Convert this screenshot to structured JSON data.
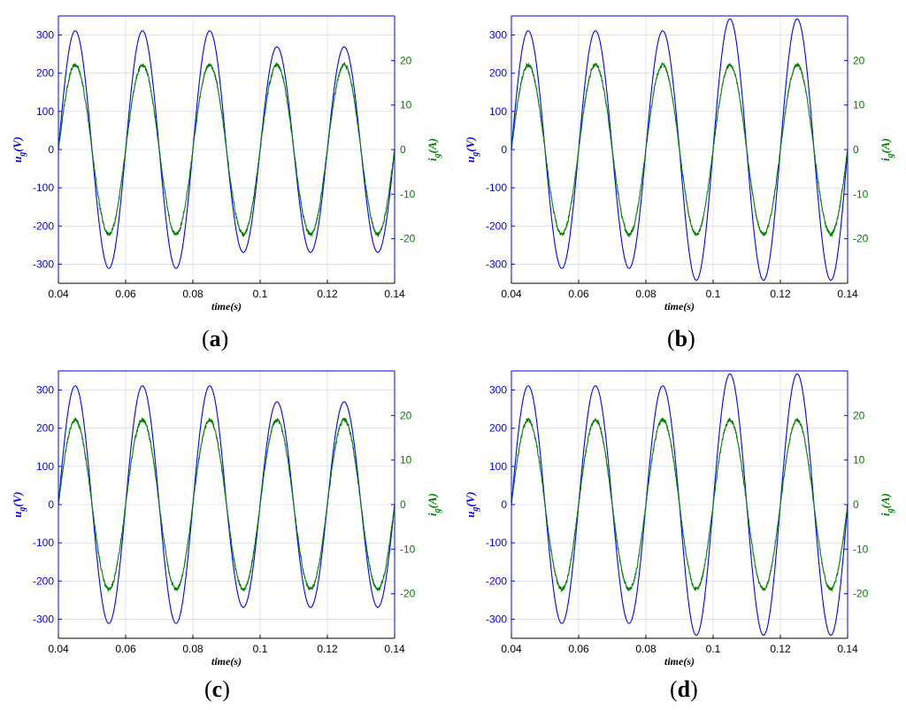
{
  "chart_data": [
    {
      "type": "line",
      "panel_label": "a",
      "xlabel": "time(s)",
      "ylabel_left": {
        "base": "u",
        "sub": "g",
        "unit": "(V)"
      },
      "ylabel_right": {
        "base": "i",
        "sub": "g",
        "unit": "(A)"
      },
      "xlim": [
        0.04,
        0.14
      ],
      "ylim_left": [
        -350,
        350
      ],
      "ylim_right": [
        -30,
        30
      ],
      "x_ticks": [
        "0.04",
        "0.06",
        "0.08",
        "0.1",
        "0.12",
        "0.14"
      ],
      "y_ticks_left": [
        "300",
        "200",
        "100",
        "0",
        "-100",
        "-200",
        "-300"
      ],
      "y_ticks_right": [
        "20",
        "10",
        "0",
        "-10",
        "-20"
      ],
      "grid": true,
      "frequency_hz": 50,
      "series": [
        {
          "axis": "left",
          "color": "#0000ff",
          "x": [
            0.04,
            0.09,
            0.09,
            0.14
          ],
          "amplitude": [
            311,
            311,
            269,
            269
          ]
        },
        {
          "axis": "right",
          "color": "#008000",
          "x": [
            0.04,
            0.09,
            0.09,
            0.14
          ],
          "amplitude": [
            19,
            19,
            19,
            19
          ]
        }
      ]
    },
    {
      "type": "line",
      "panel_label": "b",
      "xlabel": "time(s)",
      "ylabel_left": {
        "base": "u",
        "sub": "g",
        "unit": "(V)"
      },
      "ylabel_right": {
        "base": "i",
        "sub": "g",
        "unit": "(A)"
      },
      "xlim": [
        0.04,
        0.14
      ],
      "ylim_left": [
        -350,
        350
      ],
      "ylim_right": [
        -30,
        30
      ],
      "x_ticks": [
        "0.04",
        "0.06",
        "0.08",
        "0.1",
        "0.12",
        "0.14"
      ],
      "y_ticks_left": [
        "300",
        "200",
        "100",
        "0",
        "-100",
        "-200",
        "-300"
      ],
      "y_ticks_right": [
        "20",
        "10",
        "0",
        "-10",
        "-20"
      ],
      "grid": true,
      "frequency_hz": 50,
      "series": [
        {
          "axis": "left",
          "color": "#0000ff",
          "x": [
            0.04,
            0.09,
            0.09,
            0.14
          ],
          "amplitude": [
            311,
            311,
            342,
            342
          ]
        },
        {
          "axis": "right",
          "color": "#008000",
          "x": [
            0.04,
            0.09,
            0.09,
            0.14
          ],
          "amplitude": [
            19,
            19,
            19,
            19
          ]
        }
      ]
    },
    {
      "type": "line",
      "panel_label": "c",
      "xlabel": "time(s)",
      "ylabel_left": {
        "base": "u",
        "sub": "g",
        "unit": "(V)"
      },
      "ylabel_right": {
        "base": "i",
        "sub": "g",
        "unit": "(A)"
      },
      "xlim": [
        0.04,
        0.14
      ],
      "ylim_left": [
        -350,
        350
      ],
      "ylim_right": [
        -30,
        30
      ],
      "x_ticks": [
        "0.04",
        "0.06",
        "0.08",
        "0.1",
        "0.12",
        "0.14"
      ],
      "y_ticks_left": [
        "300",
        "200",
        "100",
        "0",
        "-100",
        "-200",
        "-300"
      ],
      "y_ticks_right": [
        "20",
        "10",
        "0",
        "-10",
        "-20"
      ],
      "grid": true,
      "frequency_hz": 50,
      "series": [
        {
          "axis": "left",
          "color": "#0000ff",
          "x": [
            0.04,
            0.09,
            0.09,
            0.14
          ],
          "amplitude": [
            311,
            311,
            269,
            269
          ]
        },
        {
          "axis": "right",
          "color": "#008000",
          "x": [
            0.04,
            0.09,
            0.09,
            0.14
          ],
          "amplitude": [
            19,
            19,
            19,
            19
          ]
        }
      ]
    },
    {
      "type": "line",
      "panel_label": "d",
      "xlabel": "time(s)",
      "ylabel_left": {
        "base": "u",
        "sub": "g",
        "unit": "(V)"
      },
      "ylabel_right": {
        "base": "i",
        "sub": "g",
        "unit": "(A)"
      },
      "xlim": [
        0.04,
        0.14
      ],
      "ylim_left": [
        -350,
        350
      ],
      "ylim_right": [
        -30,
        30
      ],
      "x_ticks": [
        "0.04",
        "0.06",
        "0.08",
        "0.1",
        "0.12",
        "0.14"
      ],
      "y_ticks_left": [
        "300",
        "200",
        "100",
        "0",
        "-100",
        "-200",
        "-300"
      ],
      "y_ticks_right": [
        "20",
        "10",
        "0",
        "-10",
        "-20"
      ],
      "grid": true,
      "frequency_hz": 50,
      "series": [
        {
          "axis": "left",
          "color": "#0000ff",
          "x": [
            0.04,
            0.09,
            0.09,
            0.14
          ],
          "amplitude": [
            311,
            311,
            342,
            342
          ]
        },
        {
          "axis": "right",
          "color": "#008000",
          "x": [
            0.04,
            0.09,
            0.09,
            0.14
          ],
          "amplitude": [
            19,
            19,
            19,
            19
          ]
        }
      ]
    }
  ]
}
